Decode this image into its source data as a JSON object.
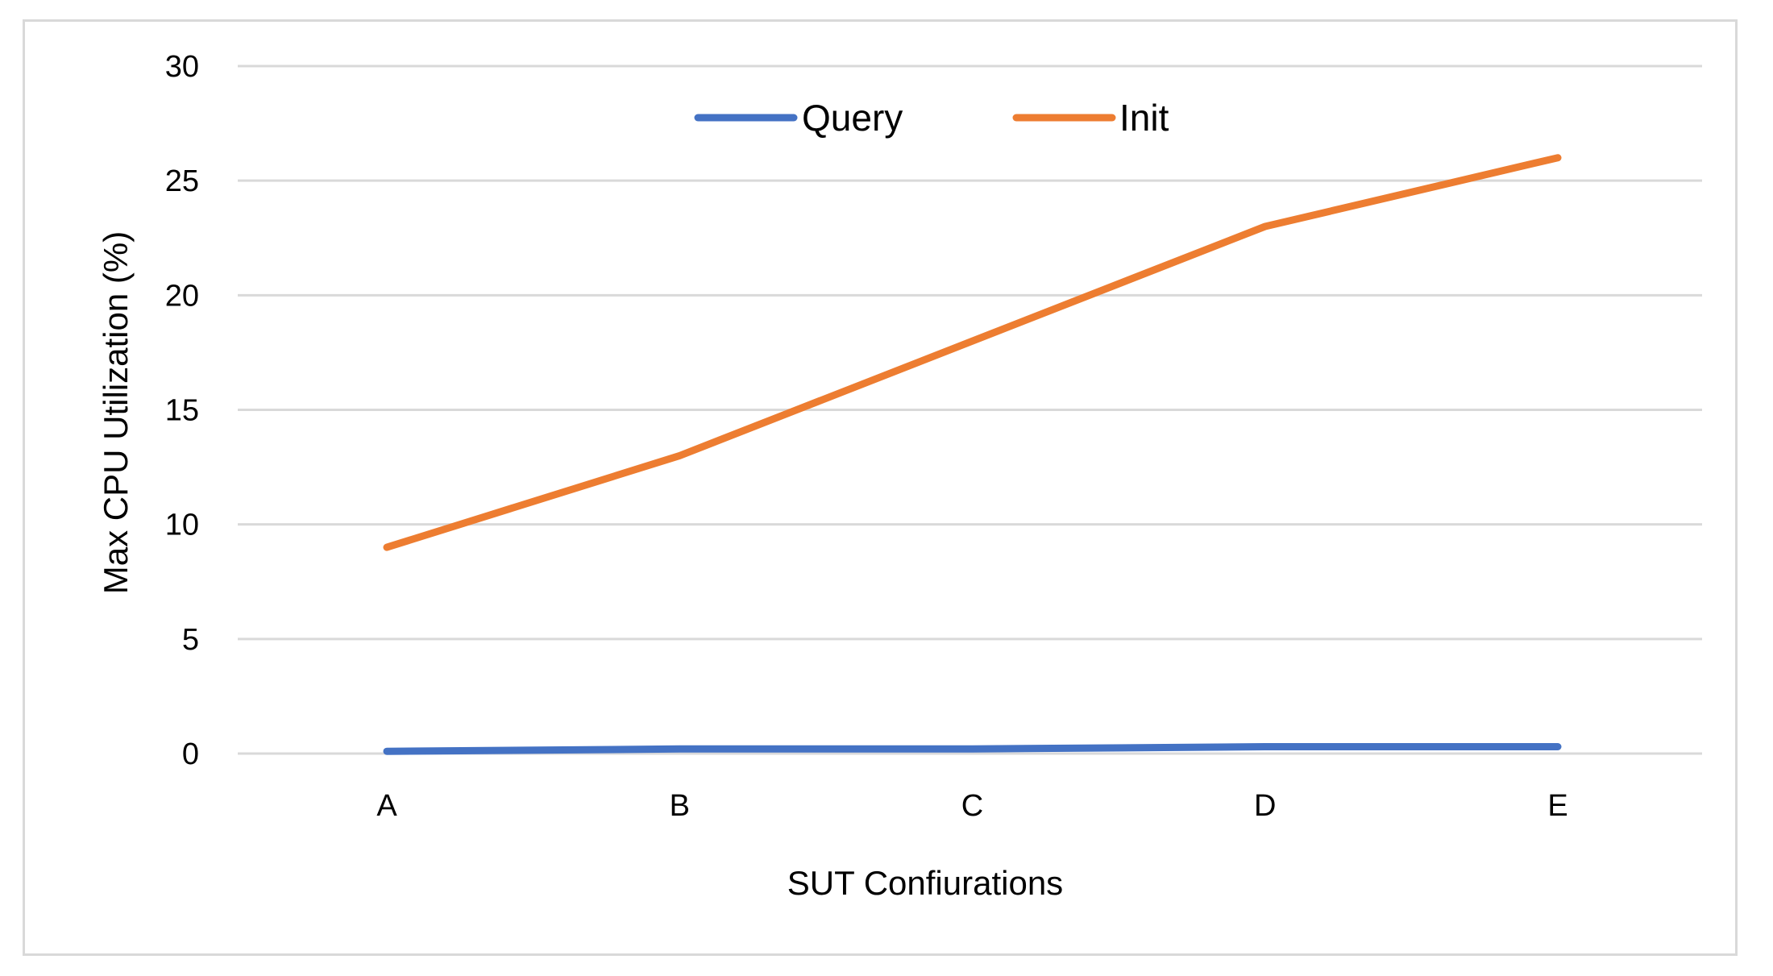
{
  "chart_data": {
    "type": "line",
    "title": "",
    "xlabel": "SUT Confiurations",
    "ylabel": "Max CPU Utilization (%)",
    "categories": [
      "A",
      "B",
      "C",
      "D",
      "E"
    ],
    "ylim": [
      0,
      30
    ],
    "yticks": [
      0,
      5,
      10,
      15,
      20,
      25,
      30
    ],
    "grid": true,
    "legend_position": "top-center",
    "series": [
      {
        "name": "Query",
        "color": "#4472c4",
        "values": [
          0.1,
          0.2,
          0.2,
          0.3,
          0.3
        ]
      },
      {
        "name": "Init",
        "color": "#ed7d31",
        "values": [
          9,
          13,
          18,
          23,
          26
        ]
      }
    ]
  }
}
